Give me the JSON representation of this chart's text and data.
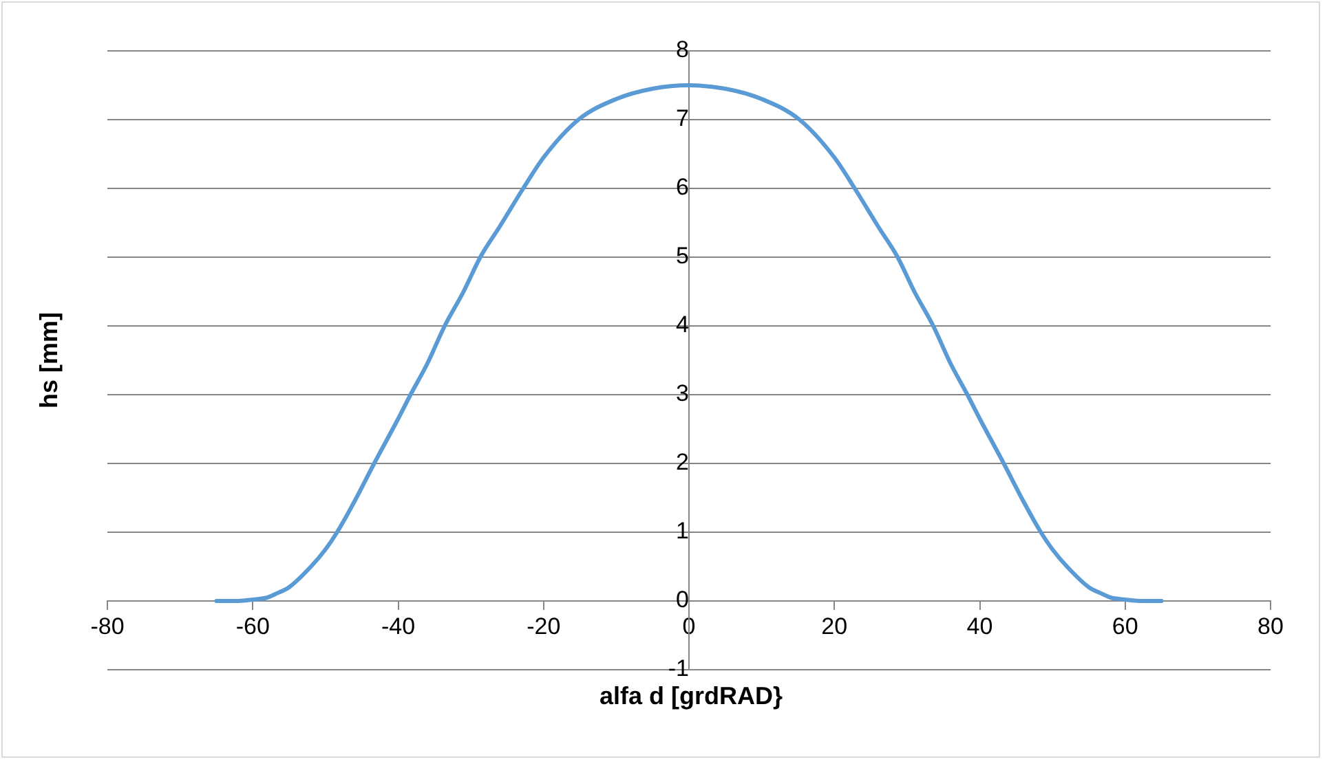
{
  "chart_data": {
    "type": "line",
    "xlabel": "alfa d [grdRAD}",
    "ylabel": "hs [mm]",
    "series": [
      {
        "color": "#5b9bd5",
        "x": [
          -65,
          -62,
          -60,
          -58,
          -56.9,
          -55,
          -52,
          -50,
          -48.4,
          -46,
          -43.3,
          -40,
          -38.3,
          -36,
          -33.6,
          -31,
          -28.7,
          -26,
          -22.8,
          -20,
          -15.2,
          -10,
          -5,
          0,
          5,
          10,
          15.2,
          20,
          22.8,
          26,
          28.7,
          31,
          33.6,
          36,
          38.3,
          40,
          43.3,
          46,
          48.4,
          50,
          52,
          55,
          56.9,
          58,
          60,
          62,
          65
        ],
        "values": [
          0,
          0,
          0.02,
          0.05,
          0.1,
          0.2,
          0.5,
          0.75,
          1,
          1.45,
          2,
          2.65,
          3,
          3.45,
          4,
          4.5,
          5,
          5.45,
          6,
          6.45,
          7,
          7.3,
          7.45,
          7.5,
          7.45,
          7.3,
          7,
          6.45,
          6,
          5.45,
          5,
          4.5,
          4,
          3.45,
          3,
          2.65,
          2,
          1.45,
          1,
          0.75,
          0.5,
          0.2,
          0.1,
          0.05,
          0.02,
          0,
          0
        ]
      }
    ],
    "xlim": [
      -80,
      80
    ],
    "xticks": [
      -80,
      -60,
      -40,
      -20,
      0,
      20,
      40,
      60,
      80
    ],
    "ylim": [
      -1,
      8
    ],
    "yticks": [
      -1,
      0,
      1,
      2,
      3,
      4,
      5,
      6,
      7,
      8
    ],
    "grid": "y",
    "legend": false,
    "marker": "none",
    "line_style": "solid"
  }
}
